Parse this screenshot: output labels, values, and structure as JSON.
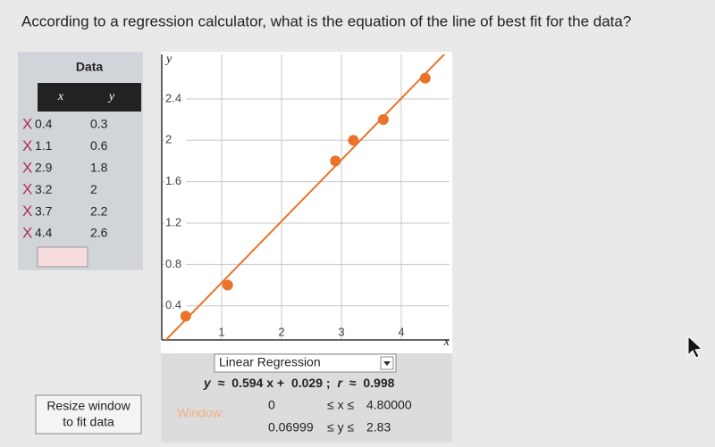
{
  "question": "According to a regression calculator, what is the equation of the line of best fit for the data?",
  "data_panel": {
    "title": "Data",
    "headers": [
      "x",
      "y"
    ],
    "remove_icon": "X",
    "rows": [
      [
        0.4,
        0.3
      ],
      [
        1.1,
        0.6
      ],
      [
        2.9,
        1.8
      ],
      [
        3.2,
        2
      ],
      [
        3.7,
        2.2
      ],
      [
        4.4,
        2.6
      ]
    ]
  },
  "graph": {
    "x_label": "x",
    "y_label": "y",
    "xlim": [
      0,
      4.8
    ],
    "ylim": [
      0.06999,
      2.83
    ],
    "xticks": [
      1,
      2,
      3,
      4
    ],
    "yticks": [
      0.4,
      0.8,
      1.2,
      1.6,
      2,
      2.4
    ],
    "grid": true,
    "point_color": "#e8742a",
    "line_color": "#e8742a"
  },
  "regression": {
    "mode": "Linear Regression",
    "y_symbol": "y",
    "approx": "≈",
    "slope": 0.594,
    "x_term": "x +",
    "intercept": 0.029,
    "separator": ";",
    "r_symbol": "r",
    "r": 0.998
  },
  "resize_button": [
    "Resize window",
    "to fit data"
  ],
  "window": {
    "label": "Window:",
    "x_min": "0",
    "x_relation": "≤ x ≤",
    "x_max": "4.80000",
    "y_min": "0.06999",
    "y_relation": "≤ y ≤",
    "y_max": "2.83"
  }
}
